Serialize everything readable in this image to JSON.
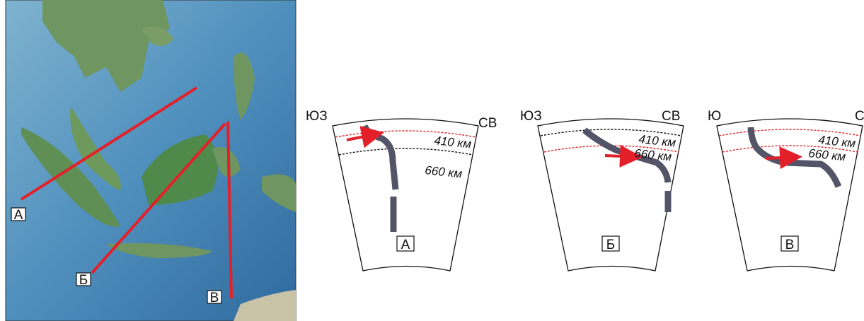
{
  "map": {
    "lines": [
      {
        "label": "А"
      },
      {
        "label": "Б"
      },
      {
        "label": "В"
      }
    ]
  },
  "sections": [
    {
      "left": "ЮЗ",
      "right": "СВ",
      "upper": "410 км",
      "lower": "660 км",
      "label": "А"
    },
    {
      "left": "ЮЗ",
      "right": "СВ",
      "upper": "410 км",
      "lower": "660 км",
      "label": "Б"
    },
    {
      "left": "Ю",
      "right": "С",
      "upper": "410 км",
      "lower": "660 км",
      "label": "В"
    }
  ]
}
